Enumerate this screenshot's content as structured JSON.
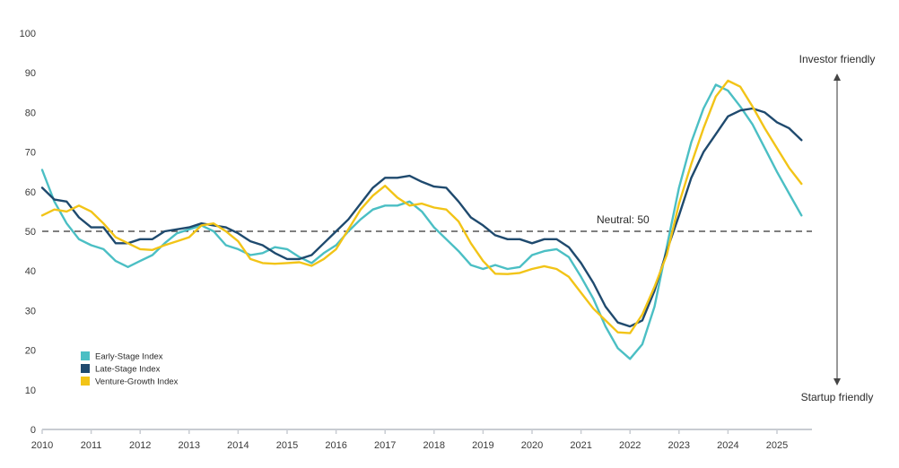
{
  "chart_data": {
    "type": "line",
    "title": "",
    "xlabel": "",
    "ylabel": "",
    "xlim": [
      2010,
      2025.9
    ],
    "ylim": [
      0,
      100
    ],
    "y_ticks": [
      "0",
      "10",
      "20",
      "30",
      "40",
      "50",
      "60",
      "70",
      "80",
      "90",
      "100"
    ],
    "x_ticks": [
      "2010",
      "2011",
      "2012",
      "2013",
      "2014",
      "2015",
      "2016",
      "2017",
      "2018",
      "2019",
      "2020",
      "2021",
      "2022",
      "2023",
      "2024",
      "2025"
    ],
    "grid": false,
    "legend_position": "bottom-left",
    "reference_line": {
      "value": 50,
      "label": "Neutral: 50"
    },
    "annotations": {
      "top": "Investor friendly",
      "bottom": "Startup friendly"
    },
    "series": [
      {
        "name": "Early-Stage Index",
        "color": "#4BBFC4",
        "values": [
          [
            2010.0,
            65.5
          ],
          [
            2010.25,
            57.5
          ],
          [
            2010.5,
            52
          ],
          [
            2010.75,
            48
          ],
          [
            2011.0,
            46.5
          ],
          [
            2011.25,
            45.5
          ],
          [
            2011.5,
            42.5
          ],
          [
            2011.75,
            41
          ],
          [
            2012.0,
            42.5
          ],
          [
            2012.25,
            44
          ],
          [
            2012.5,
            47
          ],
          [
            2012.75,
            49.5
          ],
          [
            2013.0,
            50.5
          ],
          [
            2013.25,
            51.5
          ],
          [
            2013.5,
            50
          ],
          [
            2013.75,
            46.5
          ],
          [
            2014.0,
            45.5
          ],
          [
            2014.25,
            44
          ],
          [
            2014.5,
            44.5
          ],
          [
            2014.75,
            46
          ],
          [
            2015.0,
            45.5
          ],
          [
            2015.25,
            43.5
          ],
          [
            2015.5,
            42
          ],
          [
            2015.75,
            44.5
          ],
          [
            2016.0,
            46.5
          ],
          [
            2016.25,
            50
          ],
          [
            2016.5,
            53
          ],
          [
            2016.75,
            55.5
          ],
          [
            2017.0,
            56.5
          ],
          [
            2017.25,
            56.5
          ],
          [
            2017.5,
            57.5
          ],
          [
            2017.75,
            55
          ],
          [
            2018.0,
            51
          ],
          [
            2018.25,
            48
          ],
          [
            2018.5,
            45
          ],
          [
            2018.75,
            41.5
          ],
          [
            2019.0,
            40.5
          ],
          [
            2019.25,
            41.5
          ],
          [
            2019.5,
            40.5
          ],
          [
            2019.75,
            41
          ],
          [
            2020.0,
            44
          ],
          [
            2020.25,
            45
          ],
          [
            2020.5,
            45.5
          ],
          [
            2020.75,
            43.5
          ],
          [
            2021.0,
            38.5
          ],
          [
            2021.25,
            33
          ],
          [
            2021.5,
            26
          ],
          [
            2021.75,
            20.5
          ],
          [
            2022.0,
            17.8
          ],
          [
            2022.25,
            21.5
          ],
          [
            2022.5,
            31
          ],
          [
            2022.75,
            46
          ],
          [
            2023.0,
            61
          ],
          [
            2023.25,
            72.5
          ],
          [
            2023.5,
            81
          ],
          [
            2023.75,
            87
          ],
          [
            2024.0,
            85.5
          ],
          [
            2024.25,
            81.5
          ],
          [
            2024.5,
            77
          ],
          [
            2024.75,
            71
          ],
          [
            2025.0,
            65
          ],
          [
            2025.25,
            59.5
          ],
          [
            2025.5,
            54
          ]
        ]
      },
      {
        "name": "Late-Stage Index",
        "color": "#1F4A6E",
        "values": [
          [
            2010.0,
            61
          ],
          [
            2010.25,
            58
          ],
          [
            2010.5,
            57.5
          ],
          [
            2010.75,
            53.5
          ],
          [
            2011.0,
            51
          ],
          [
            2011.25,
            51
          ],
          [
            2011.5,
            47
          ],
          [
            2011.75,
            47
          ],
          [
            2012.0,
            48
          ],
          [
            2012.25,
            48
          ],
          [
            2012.5,
            50
          ],
          [
            2012.75,
            50.5
          ],
          [
            2013.0,
            51
          ],
          [
            2013.25,
            52
          ],
          [
            2013.5,
            51.5
          ],
          [
            2013.75,
            51
          ],
          [
            2014.0,
            49.5
          ],
          [
            2014.25,
            47.5
          ],
          [
            2014.5,
            46.5
          ],
          [
            2014.75,
            44.5
          ],
          [
            2015.0,
            43
          ],
          [
            2015.25,
            43
          ],
          [
            2015.5,
            44
          ],
          [
            2015.75,
            47
          ],
          [
            2016.0,
            50
          ],
          [
            2016.25,
            53
          ],
          [
            2016.5,
            57
          ],
          [
            2016.75,
            61
          ],
          [
            2017.0,
            63.5
          ],
          [
            2017.25,
            63.5
          ],
          [
            2017.5,
            64
          ],
          [
            2017.75,
            62.5
          ],
          [
            2018.0,
            61.3
          ],
          [
            2018.25,
            61
          ],
          [
            2018.5,
            57.5
          ],
          [
            2018.75,
            53.5
          ],
          [
            2019.0,
            51.5
          ],
          [
            2019.25,
            49
          ],
          [
            2019.5,
            48
          ],
          [
            2019.75,
            48
          ],
          [
            2020.0,
            47
          ],
          [
            2020.25,
            48
          ],
          [
            2020.5,
            48
          ],
          [
            2020.75,
            46
          ],
          [
            2021.0,
            42
          ],
          [
            2021.25,
            37
          ],
          [
            2021.5,
            31
          ],
          [
            2021.75,
            27
          ],
          [
            2022.0,
            26
          ],
          [
            2022.25,
            27.5
          ],
          [
            2022.5,
            35
          ],
          [
            2022.75,
            45
          ],
          [
            2023.0,
            54
          ],
          [
            2023.25,
            63.5
          ],
          [
            2023.5,
            70
          ],
          [
            2023.75,
            74.5
          ],
          [
            2024.0,
            79
          ],
          [
            2024.25,
            80.5
          ],
          [
            2024.5,
            81
          ],
          [
            2024.75,
            80
          ],
          [
            2025.0,
            77.5
          ],
          [
            2025.25,
            76
          ],
          [
            2025.5,
            73
          ]
        ]
      },
      {
        "name": "Venture-Growth Index",
        "color": "#F2C417",
        "values": [
          [
            2010.0,
            54
          ],
          [
            2010.25,
            55.5
          ],
          [
            2010.5,
            55
          ],
          [
            2010.75,
            56.5
          ],
          [
            2011.0,
            55
          ],
          [
            2011.25,
            52
          ],
          [
            2011.5,
            48.5
          ],
          [
            2011.75,
            47
          ],
          [
            2012.0,
            45.5
          ],
          [
            2012.25,
            45.3
          ],
          [
            2012.5,
            46.5
          ],
          [
            2012.75,
            47.5
          ],
          [
            2013.0,
            48.5
          ],
          [
            2013.25,
            51.5
          ],
          [
            2013.5,
            52
          ],
          [
            2013.75,
            50
          ],
          [
            2014.0,
            47.5
          ],
          [
            2014.25,
            43
          ],
          [
            2014.5,
            42
          ],
          [
            2014.75,
            41.8
          ],
          [
            2015.0,
            42
          ],
          [
            2015.25,
            42.2
          ],
          [
            2015.5,
            41.3
          ],
          [
            2015.75,
            43
          ],
          [
            2016.0,
            45.5
          ],
          [
            2016.25,
            50.5
          ],
          [
            2016.5,
            55.5
          ],
          [
            2016.75,
            59
          ],
          [
            2017.0,
            61.5
          ],
          [
            2017.25,
            58.5
          ],
          [
            2017.5,
            56.5
          ],
          [
            2017.75,
            57
          ],
          [
            2018.0,
            56
          ],
          [
            2018.25,
            55.5
          ],
          [
            2018.5,
            52.5
          ],
          [
            2018.75,
            47
          ],
          [
            2019.0,
            42.5
          ],
          [
            2019.25,
            39.3
          ],
          [
            2019.5,
            39.2
          ],
          [
            2019.75,
            39.5
          ],
          [
            2020.0,
            40.5
          ],
          [
            2020.25,
            41.2
          ],
          [
            2020.5,
            40.5
          ],
          [
            2020.75,
            38.5
          ],
          [
            2021.0,
            34.5
          ],
          [
            2021.25,
            30.5
          ],
          [
            2021.5,
            27.5
          ],
          [
            2021.75,
            24.5
          ],
          [
            2022.0,
            24.3
          ],
          [
            2022.25,
            29
          ],
          [
            2022.5,
            36
          ],
          [
            2022.75,
            44
          ],
          [
            2023.0,
            57
          ],
          [
            2023.25,
            67
          ],
          [
            2023.5,
            76
          ],
          [
            2023.75,
            84
          ],
          [
            2024.0,
            88
          ],
          [
            2024.25,
            86.5
          ],
          [
            2024.5,
            81.5
          ],
          [
            2024.75,
            76
          ],
          [
            2025.0,
            71
          ],
          [
            2025.25,
            66
          ],
          [
            2025.5,
            62
          ]
        ]
      }
    ]
  }
}
